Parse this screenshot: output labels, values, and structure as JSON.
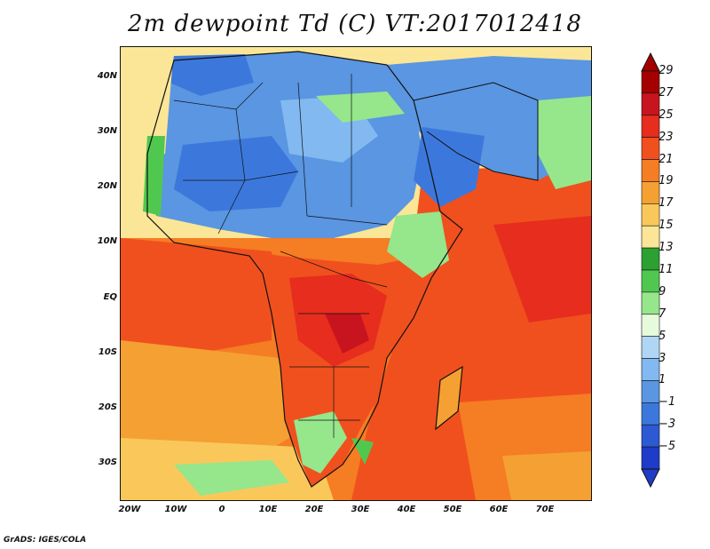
{
  "title": "2m dewpoint Td (C) VT:2017012418",
  "credit": "GrADS: IGES/COLA",
  "y_axis": {
    "ticks": [
      "40N",
      "30N",
      "20N",
      "10N",
      "EQ",
      "10S",
      "20S",
      "30S"
    ],
    "values": [
      40,
      30,
      20,
      10,
      0,
      -10,
      -20,
      -30
    ],
    "range": [
      -36,
      45
    ]
  },
  "x_axis": {
    "ticks": [
      "20W",
      "10W",
      "0",
      "10E",
      "20E",
      "30E",
      "40E",
      "50E",
      "60E",
      "70E"
    ],
    "values": [
      -20,
      -10,
      0,
      10,
      20,
      30,
      40,
      50,
      60,
      70
    ],
    "range": [
      -21,
      80
    ]
  },
  "colorbar": {
    "levels": [
      "29",
      "27",
      "25",
      "23",
      "21",
      "19",
      "17",
      "15",
      "13",
      "11",
      "9",
      "7",
      "5",
      "3",
      "1",
      "−1",
      "−3",
      "−5"
    ],
    "colors": [
      "#a50000",
      "#c8141e",
      "#e62d1e",
      "#f0501e",
      "#f57d23",
      "#f5a032",
      "#fac85a",
      "#fae696",
      "#2da032",
      "#50c850",
      "#96e68c",
      "#e6fadc",
      "#afd7f5",
      "#82b9f0",
      "#5a96e1",
      "#3c78dc",
      "#2d5ad2",
      "#1e3cc8"
    ]
  },
  "chart_data": {
    "type": "heatmap",
    "title": "2m dewpoint Td (C) VT:2017012418",
    "variable": "2m dewpoint Td",
    "units": "C",
    "valid_time": "2017012418",
    "lon_range": [
      -21,
      80
    ],
    "lat_range": [
      -36,
      45
    ],
    "contour_levels": [
      -5,
      -3,
      -1,
      1,
      3,
      5,
      7,
      9,
      11,
      13,
      15,
      17,
      19,
      21,
      23,
      25,
      27,
      29
    ]
  }
}
